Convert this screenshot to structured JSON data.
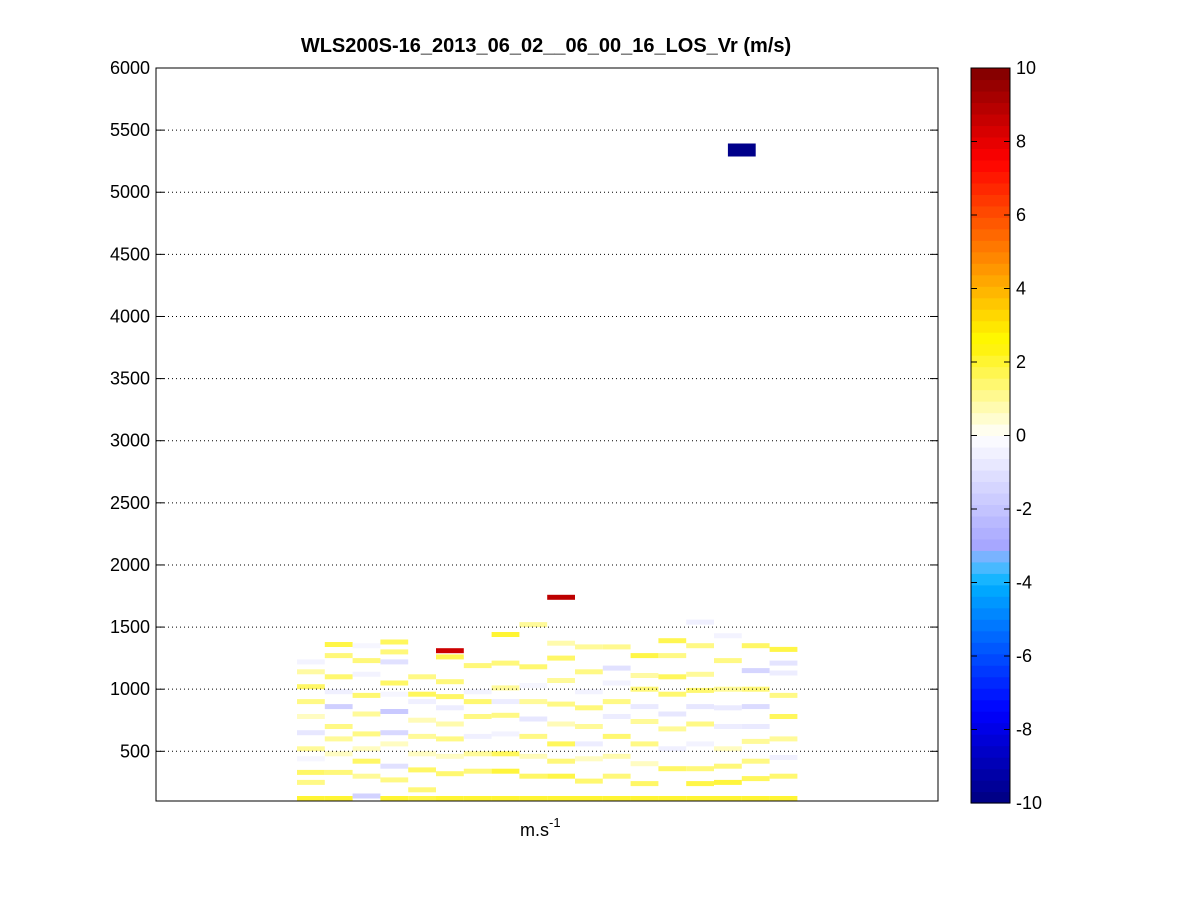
{
  "chart_data": {
    "type": "heatmap",
    "title": "WLS200S-16_2013_06_02__06_00_16_LOS_Vr (m/s)",
    "xlabel": "m.s",
    "xlabel_sup": "-1",
    "ylabel": "",
    "ylim": [
      100,
      6000
    ],
    "yticks": [
      500,
      1000,
      1500,
      2000,
      2500,
      3000,
      3500,
      4000,
      4500,
      5000,
      5500,
      6000
    ],
    "grid": "horizontal-dotted",
    "colorbar": {
      "range": [
        -10,
        10
      ],
      "ticks": [
        -10,
        -8,
        -6,
        -4,
        -2,
        0,
        2,
        4,
        6,
        8,
        10
      ],
      "levels": 64
    },
    "columns": 18,
    "cells": [
      {
        "col": 0,
        "alt": 120,
        "v": 2.0
      },
      {
        "col": 0,
        "alt": 250,
        "v": 1.2
      },
      {
        "col": 0,
        "alt": 330,
        "v": 1.5
      },
      {
        "col": 0,
        "alt": 440,
        "v": -0.3
      },
      {
        "col": 0,
        "alt": 520,
        "v": 1.0
      },
      {
        "col": 0,
        "alt": 650,
        "v": -0.8
      },
      {
        "col": 0,
        "alt": 780,
        "v": 0.6
      },
      {
        "col": 0,
        "alt": 900,
        "v": 1.2
      },
      {
        "col": 0,
        "alt": 1020,
        "v": 1.5
      },
      {
        "col": 0,
        "alt": 1140,
        "v": 0.9
      },
      {
        "col": 0,
        "alt": 1220,
        "v": -0.4
      },
      {
        "col": 1,
        "alt": 120,
        "v": 2.0
      },
      {
        "col": 1,
        "alt": 330,
        "v": 1.3
      },
      {
        "col": 1,
        "alt": 480,
        "v": 0.6
      },
      {
        "col": 1,
        "alt": 600,
        "v": 1.0
      },
      {
        "col": 1,
        "alt": 700,
        "v": 1.2
      },
      {
        "col": 1,
        "alt": 860,
        "v": -1.6
      },
      {
        "col": 1,
        "alt": 980,
        "v": -0.5
      },
      {
        "col": 1,
        "alt": 1100,
        "v": 1.4
      },
      {
        "col": 1,
        "alt": 1270,
        "v": 1.3
      },
      {
        "col": 1,
        "alt": 1360,
        "v": 1.8
      },
      {
        "col": 2,
        "alt": 140,
        "v": -1.5
      },
      {
        "col": 2,
        "alt": 300,
        "v": 1.0
      },
      {
        "col": 2,
        "alt": 420,
        "v": 1.5
      },
      {
        "col": 2,
        "alt": 520,
        "v": 0.6
      },
      {
        "col": 2,
        "alt": 640,
        "v": 1.2
      },
      {
        "col": 2,
        "alt": 800,
        "v": 1.0
      },
      {
        "col": 2,
        "alt": 950,
        "v": 1.4
      },
      {
        "col": 2,
        "alt": 1120,
        "v": -0.4
      },
      {
        "col": 2,
        "alt": 1230,
        "v": 1.3
      },
      {
        "col": 2,
        "alt": 1350,
        "v": -0.3
      },
      {
        "col": 3,
        "alt": 120,
        "v": 2.0
      },
      {
        "col": 3,
        "alt": 270,
        "v": 1.2
      },
      {
        "col": 3,
        "alt": 380,
        "v": -1.0
      },
      {
        "col": 3,
        "alt": 560,
        "v": 0.6
      },
      {
        "col": 3,
        "alt": 650,
        "v": -1.3
      },
      {
        "col": 3,
        "alt": 820,
        "v": -1.8
      },
      {
        "col": 3,
        "alt": 960,
        "v": -0.3
      },
      {
        "col": 3,
        "alt": 1050,
        "v": 1.5
      },
      {
        "col": 3,
        "alt": 1220,
        "v": -1.0
      },
      {
        "col": 3,
        "alt": 1300,
        "v": 1.3
      },
      {
        "col": 3,
        "alt": 1380,
        "v": 1.6
      },
      {
        "col": 4,
        "alt": 120,
        "v": 1.8
      },
      {
        "col": 4,
        "alt": 190,
        "v": 1.3
      },
      {
        "col": 4,
        "alt": 350,
        "v": 1.5
      },
      {
        "col": 4,
        "alt": 480,
        "v": 0.6
      },
      {
        "col": 4,
        "alt": 620,
        "v": 1.0
      },
      {
        "col": 4,
        "alt": 750,
        "v": 0.7
      },
      {
        "col": 4,
        "alt": 900,
        "v": -0.5
      },
      {
        "col": 4,
        "alt": 960,
        "v": 1.6
      },
      {
        "col": 4,
        "alt": 1100,
        "v": 1.2
      },
      {
        "col": 5,
        "alt": 120,
        "v": 2.0
      },
      {
        "col": 5,
        "alt": 320,
        "v": 1.4
      },
      {
        "col": 5,
        "alt": 460,
        "v": 0.6
      },
      {
        "col": 5,
        "alt": 600,
        "v": 1.2
      },
      {
        "col": 5,
        "alt": 720,
        "v": 0.8
      },
      {
        "col": 5,
        "alt": 850,
        "v": -0.6
      },
      {
        "col": 5,
        "alt": 940,
        "v": 1.5
      },
      {
        "col": 5,
        "alt": 1060,
        "v": 1.3
      },
      {
        "col": 5,
        "alt": 1260,
        "v": 1.7
      },
      {
        "col": 5,
        "alt": 1310,
        "v": 8.5
      },
      {
        "col": 6,
        "alt": 120,
        "v": 2.0
      },
      {
        "col": 6,
        "alt": 340,
        "v": 1.3
      },
      {
        "col": 6,
        "alt": 480,
        "v": 1.0
      },
      {
        "col": 6,
        "alt": 620,
        "v": -0.5
      },
      {
        "col": 6,
        "alt": 780,
        "v": 1.2
      },
      {
        "col": 6,
        "alt": 900,
        "v": 1.4
      },
      {
        "col": 6,
        "alt": 980,
        "v": -0.4
      },
      {
        "col": 6,
        "alt": 1190,
        "v": 1.3
      },
      {
        "col": 7,
        "alt": 120,
        "v": 2.0
      },
      {
        "col": 7,
        "alt": 340,
        "v": 1.9
      },
      {
        "col": 7,
        "alt": 480,
        "v": 1.6
      },
      {
        "col": 7,
        "alt": 640,
        "v": -0.4
      },
      {
        "col": 7,
        "alt": 790,
        "v": 1.2
      },
      {
        "col": 7,
        "alt": 900,
        "v": -0.6
      },
      {
        "col": 7,
        "alt": 1010,
        "v": 1.0
      },
      {
        "col": 7,
        "alt": 1210,
        "v": 1.3
      },
      {
        "col": 7,
        "alt": 1440,
        "v": 2.0
      },
      {
        "col": 8,
        "alt": 120,
        "v": 2.0
      },
      {
        "col": 8,
        "alt": 300,
        "v": 1.5
      },
      {
        "col": 8,
        "alt": 460,
        "v": 0.7
      },
      {
        "col": 8,
        "alt": 620,
        "v": 1.2
      },
      {
        "col": 8,
        "alt": 760,
        "v": -0.8
      },
      {
        "col": 8,
        "alt": 900,
        "v": 1.0
      },
      {
        "col": 8,
        "alt": 1030,
        "v": -0.3
      },
      {
        "col": 8,
        "alt": 1180,
        "v": 1.4
      },
      {
        "col": 8,
        "alt": 1520,
        "v": 1.0
      },
      {
        "col": 9,
        "alt": 120,
        "v": 2.0
      },
      {
        "col": 9,
        "alt": 300,
        "v": 1.8
      },
      {
        "col": 9,
        "alt": 420,
        "v": 1.3
      },
      {
        "col": 9,
        "alt": 560,
        "v": 1.6
      },
      {
        "col": 9,
        "alt": 720,
        "v": 0.7
      },
      {
        "col": 9,
        "alt": 880,
        "v": 1.2
      },
      {
        "col": 9,
        "alt": 1070,
        "v": 1.0
      },
      {
        "col": 9,
        "alt": 1250,
        "v": 1.5
      },
      {
        "col": 9,
        "alt": 1370,
        "v": 0.8
      },
      {
        "col": 9,
        "alt": 1740,
        "v": 8.8
      },
      {
        "col": 10,
        "alt": 120,
        "v": 2.0
      },
      {
        "col": 10,
        "alt": 260,
        "v": 1.4
      },
      {
        "col": 10,
        "alt": 440,
        "v": 0.6
      },
      {
        "col": 10,
        "alt": 560,
        "v": -0.6
      },
      {
        "col": 10,
        "alt": 700,
        "v": 1.0
      },
      {
        "col": 10,
        "alt": 850,
        "v": 1.3
      },
      {
        "col": 10,
        "alt": 980,
        "v": -0.4
      },
      {
        "col": 10,
        "alt": 1140,
        "v": 1.2
      },
      {
        "col": 10,
        "alt": 1340,
        "v": 1.0
      },
      {
        "col": 11,
        "alt": 120,
        "v": 2.0
      },
      {
        "col": 11,
        "alt": 300,
        "v": 1.3
      },
      {
        "col": 11,
        "alt": 460,
        "v": 0.8
      },
      {
        "col": 11,
        "alt": 620,
        "v": 1.4
      },
      {
        "col": 11,
        "alt": 780,
        "v": -0.6
      },
      {
        "col": 11,
        "alt": 900,
        "v": 1.2
      },
      {
        "col": 11,
        "alt": 1050,
        "v": -0.4
      },
      {
        "col": 11,
        "alt": 1170,
        "v": -1.0
      },
      {
        "col": 11,
        "alt": 1340,
        "v": 1.1
      },
      {
        "col": 12,
        "alt": 120,
        "v": 2.0
      },
      {
        "col": 12,
        "alt": 240,
        "v": 1.5
      },
      {
        "col": 12,
        "alt": 400,
        "v": 0.6
      },
      {
        "col": 12,
        "alt": 560,
        "v": 1.2
      },
      {
        "col": 12,
        "alt": 740,
        "v": 1.0
      },
      {
        "col": 12,
        "alt": 860,
        "v": -0.7
      },
      {
        "col": 12,
        "alt": 1000,
        "v": 1.3
      },
      {
        "col": 12,
        "alt": 1110,
        "v": 0.9
      },
      {
        "col": 12,
        "alt": 1270,
        "v": 1.8
      },
      {
        "col": 13,
        "alt": 120,
        "v": 2.0
      },
      {
        "col": 13,
        "alt": 360,
        "v": 1.5
      },
      {
        "col": 13,
        "alt": 520,
        "v": -0.5
      },
      {
        "col": 13,
        "alt": 680,
        "v": 1.0
      },
      {
        "col": 13,
        "alt": 800,
        "v": -0.8
      },
      {
        "col": 13,
        "alt": 960,
        "v": 1.4
      },
      {
        "col": 13,
        "alt": 1100,
        "v": 1.6
      },
      {
        "col": 13,
        "alt": 1270,
        "v": 1.2
      },
      {
        "col": 13,
        "alt": 1390,
        "v": 1.7
      },
      {
        "col": 14,
        "alt": 120,
        "v": 2.0
      },
      {
        "col": 14,
        "alt": 240,
        "v": 1.8
      },
      {
        "col": 14,
        "alt": 360,
        "v": 1.3
      },
      {
        "col": 14,
        "alt": 560,
        "v": -0.4
      },
      {
        "col": 14,
        "alt": 720,
        "v": 1.2
      },
      {
        "col": 14,
        "alt": 860,
        "v": -0.8
      },
      {
        "col": 14,
        "alt": 990,
        "v": 1.4
      },
      {
        "col": 14,
        "alt": 1120,
        "v": 1.0
      },
      {
        "col": 14,
        "alt": 1350,
        "v": 1.2
      },
      {
        "col": 14,
        "alt": 1540,
        "v": -0.5
      },
      {
        "col": 15,
        "alt": 120,
        "v": 2.0
      },
      {
        "col": 15,
        "alt": 250,
        "v": 1.9
      },
      {
        "col": 15,
        "alt": 380,
        "v": 1.3
      },
      {
        "col": 15,
        "alt": 520,
        "v": 0.6
      },
      {
        "col": 15,
        "alt": 700,
        "v": -0.6
      },
      {
        "col": 15,
        "alt": 850,
        "v": -0.7
      },
      {
        "col": 15,
        "alt": 1000,
        "v": 1.0
      },
      {
        "col": 15,
        "alt": 1230,
        "v": 1.2
      },
      {
        "col": 15,
        "alt": 1430,
        "v": -0.4
      },
      {
        "col": 16,
        "alt": 120,
        "v": 2.0
      },
      {
        "col": 16,
        "alt": 280,
        "v": 1.6
      },
      {
        "col": 16,
        "alt": 420,
        "v": 1.2
      },
      {
        "col": 16,
        "alt": 580,
        "v": 1.0
      },
      {
        "col": 16,
        "alt": 700,
        "v": -0.7
      },
      {
        "col": 16,
        "alt": 860,
        "v": -1.2
      },
      {
        "col": 16,
        "alt": 1000,
        "v": 1.3
      },
      {
        "col": 16,
        "alt": 1150,
        "v": -1.4
      },
      {
        "col": 16,
        "alt": 1350,
        "v": 1.5
      },
      {
        "col": 17,
        "alt": 120,
        "v": 2.0
      },
      {
        "col": 17,
        "alt": 300,
        "v": 1.4
      },
      {
        "col": 17,
        "alt": 450,
        "v": -0.5
      },
      {
        "col": 17,
        "alt": 600,
        "v": 1.0
      },
      {
        "col": 17,
        "alt": 780,
        "v": 1.6
      },
      {
        "col": 17,
        "alt": 950,
        "v": 1.2
      },
      {
        "col": 17,
        "alt": 1130,
        "v": -0.6
      },
      {
        "col": 17,
        "alt": 1210,
        "v": -0.9
      },
      {
        "col": 17,
        "alt": 1320,
        "v": 1.8
      },
      {
        "col": 15.5,
        "alt": 5340,
        "v": -9.8
      }
    ]
  }
}
